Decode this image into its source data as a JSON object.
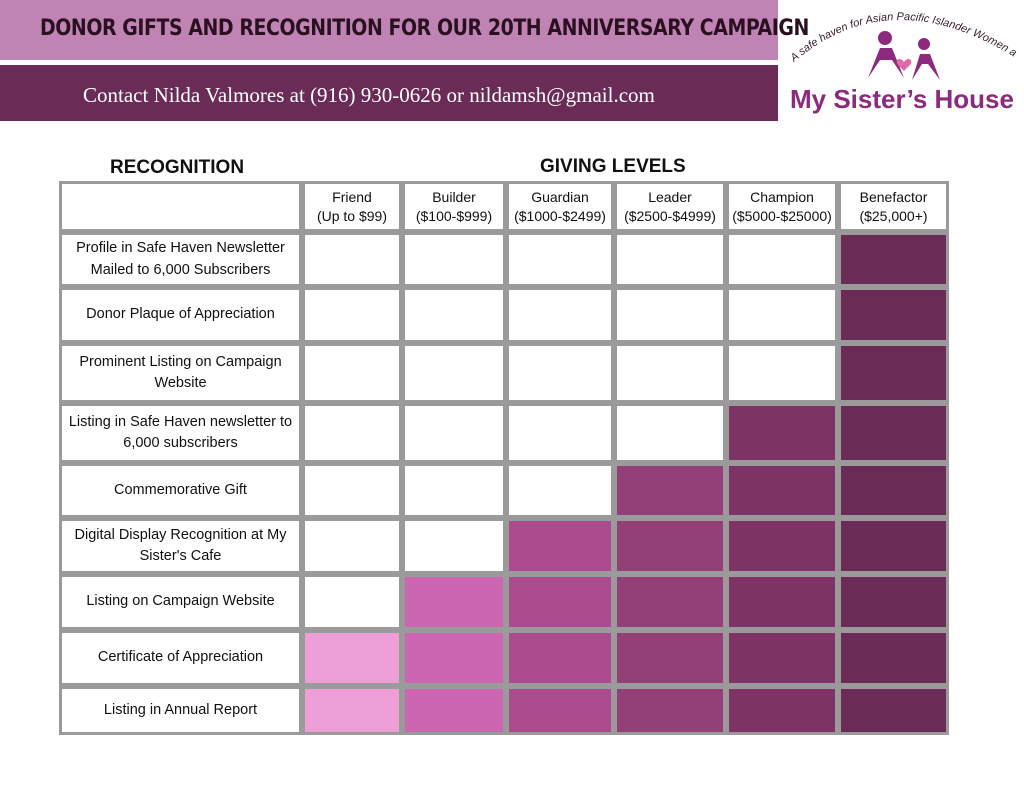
{
  "header": {
    "title": "DONOR GIFTS AND RECOGNITION FOR OUR 20TH ANNIVERSARY CAMPAIGN",
    "contact": "Contact Nilda Valmores at (916) 930-0626 or nildamsh@gmail.com"
  },
  "logo": {
    "tagline": "A safe haven for Asian Pacific Islander Women and Children",
    "name": "My Sister’s House"
  },
  "table": {
    "recognition_heading": "RECOGNITION",
    "levels_heading": "GIVING LEVELS",
    "levels": [
      {
        "name": "Friend",
        "range": "(Up to $99)",
        "color": "#ee9ed6"
      },
      {
        "name": "Builder",
        "range": "($100-$999)",
        "color": "#cc66b0"
      },
      {
        "name": "Guardian",
        "range": "($1000-$2499)",
        "color": "#ad4b8f"
      },
      {
        "name": "Leader",
        "range": "($2500-$4999)",
        "color": "#934078"
      },
      {
        "name": "Champion",
        "range": "($5000-$25000)",
        "color": "#7d3366"
      },
      {
        "name": "Benefactor",
        "range": "($25,000+)",
        "color": "#6a2b57"
      }
    ],
    "rows": [
      {
        "label": "Profile in Safe Haven Newsletter Mailed to 6,000 Subscribers",
        "included": [
          false,
          false,
          false,
          false,
          false,
          true
        ]
      },
      {
        "label": "Donor Plaque of Appreciation",
        "included": [
          false,
          false,
          false,
          false,
          false,
          true
        ]
      },
      {
        "label": "Prominent Listing on Campaign Website",
        "included": [
          false,
          false,
          false,
          false,
          false,
          true
        ]
      },
      {
        "label": "Listing in Safe Haven newsletter to 6,000 subscribers",
        "included": [
          false,
          false,
          false,
          false,
          true,
          true
        ]
      },
      {
        "label": "Commemorative Gift",
        "included": [
          false,
          false,
          false,
          true,
          true,
          true
        ]
      },
      {
        "label": "Digital Display Recognition at My Sister's Cafe",
        "included": [
          false,
          false,
          true,
          true,
          true,
          true
        ]
      },
      {
        "label": "Listing on Campaign Website",
        "included": [
          false,
          true,
          true,
          true,
          true,
          true
        ]
      },
      {
        "label": "Certificate of Appreciation",
        "included": [
          true,
          true,
          true,
          true,
          true,
          true
        ]
      },
      {
        "label": "Listing in Annual Report",
        "included": [
          true,
          true,
          true,
          true,
          true,
          true
        ]
      }
    ]
  }
}
